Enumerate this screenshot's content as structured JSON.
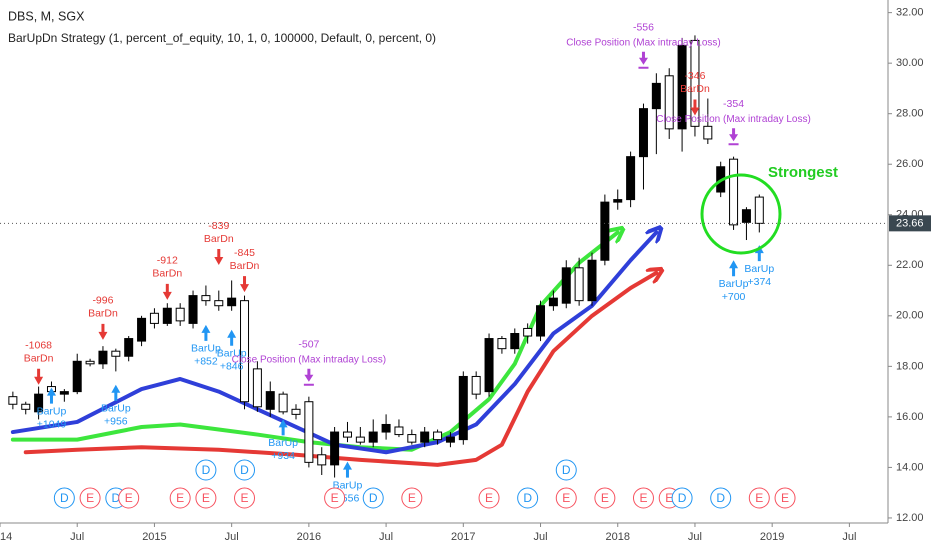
{
  "chart_data": {
    "type": "candlestick",
    "title": "DBS, M, SGX",
    "subtitle": "BarUpDn Strategy (1, percent_of_equity, 10, 1, 0, 100000, Default, 0, percent, 0)",
    "annotation": "Strongest",
    "up_color": "#000000",
    "down_color": "#ffffff",
    "xlim": [
      "2014-01",
      "2019-10"
    ],
    "xticks": [
      {
        "value": "2014-01",
        "label": "14"
      },
      {
        "value": "2014-07",
        "label": "Jul"
      },
      {
        "value": "2015-01",
        "label": "2015"
      },
      {
        "value": "2015-07",
        "label": "Jul"
      },
      {
        "value": "2016-01",
        "label": "2016"
      },
      {
        "value": "2016-07",
        "label": "Jul"
      },
      {
        "value": "2017-01",
        "label": "2017"
      },
      {
        "value": "2017-07",
        "label": "Jul"
      },
      {
        "value": "2018-01",
        "label": "2018"
      },
      {
        "value": "2018-07",
        "label": "Jul"
      },
      {
        "value": "2019-01",
        "label": "2019"
      },
      {
        "value": "2019-07",
        "label": "Jul"
      }
    ],
    "ylim": [
      11.8,
      32.5
    ],
    "yticks": [
      {
        "value": 12,
        "label": "12.00"
      },
      {
        "value": 14,
        "label": "14.00"
      },
      {
        "value": 16,
        "label": "16.00"
      },
      {
        "value": 18,
        "label": "18.00"
      },
      {
        "value": 20,
        "label": "20.00"
      },
      {
        "value": 22,
        "label": "22.00"
      },
      {
        "value": 24,
        "label": "24.00"
      },
      {
        "value": 26,
        "label": "26.00"
      },
      {
        "value": 28,
        "label": "28.00"
      },
      {
        "value": 30,
        "label": "30.00"
      },
      {
        "value": 32,
        "label": "32.00"
      }
    ],
    "last_price": {
      "value": 23.66,
      "label": "23.66"
    },
    "candles": [
      {
        "x": "2014-02",
        "o": 16.8,
        "h": 17.0,
        "l": 16.3,
        "c": 16.5
      },
      {
        "x": "2014-03",
        "o": 16.5,
        "h": 16.6,
        "l": 16.1,
        "c": 16.3
      },
      {
        "x": "2014-04",
        "o": 16.2,
        "h": 17.2,
        "l": 15.9,
        "c": 16.9
      },
      {
        "x": "2014-05",
        "o": 17.2,
        "h": 17.4,
        "l": 16.9,
        "c": 17.0
      },
      {
        "x": "2014-06",
        "o": 16.9,
        "h": 17.1,
        "l": 16.6,
        "c": 17.0
      },
      {
        "x": "2014-07",
        "o": 17.0,
        "h": 18.5,
        "l": 16.9,
        "c": 18.2
      },
      {
        "x": "2014-08",
        "o": 18.2,
        "h": 18.3,
        "l": 18.0,
        "c": 18.1
      },
      {
        "x": "2014-09",
        "o": 18.1,
        "h": 18.8,
        "l": 17.9,
        "c": 18.6
      },
      {
        "x": "2014-10",
        "o": 18.6,
        "h": 18.7,
        "l": 17.8,
        "c": 18.4
      },
      {
        "x": "2014-11",
        "o": 18.4,
        "h": 19.2,
        "l": 18.2,
        "c": 19.1
      },
      {
        "x": "2014-12",
        "o": 19.0,
        "h": 20.0,
        "l": 18.8,
        "c": 19.9
      },
      {
        "x": "2015-01",
        "o": 20.1,
        "h": 20.3,
        "l": 19.5,
        "c": 19.7
      },
      {
        "x": "2015-02",
        "o": 19.7,
        "h": 20.5,
        "l": 19.6,
        "c": 20.3
      },
      {
        "x": "2015-03",
        "o": 20.3,
        "h": 20.5,
        "l": 19.6,
        "c": 19.8
      },
      {
        "x": "2015-04",
        "o": 19.7,
        "h": 21.0,
        "l": 19.5,
        "c": 20.8
      },
      {
        "x": "2015-05",
        "o": 20.8,
        "h": 21.2,
        "l": 20.4,
        "c": 20.6
      },
      {
        "x": "2015-06",
        "o": 20.6,
        "h": 21.0,
        "l": 20.2,
        "c": 20.4
      },
      {
        "x": "2015-07",
        "o": 20.4,
        "h": 21.4,
        "l": 20.2,
        "c": 20.7
      },
      {
        "x": "2015-08",
        "o": 20.6,
        "h": 20.8,
        "l": 16.3,
        "c": 16.6
      },
      {
        "x": "2015-09",
        "o": 17.9,
        "h": 18.2,
        "l": 16.2,
        "c": 16.4
      },
      {
        "x": "2015-10",
        "o": 16.3,
        "h": 17.4,
        "l": 16.0,
        "c": 17.0
      },
      {
        "x": "2015-11",
        "o": 16.9,
        "h": 17.0,
        "l": 16.1,
        "c": 16.2
      },
      {
        "x": "2015-12",
        "o": 16.3,
        "h": 16.5,
        "l": 15.9,
        "c": 16.1
      },
      {
        "x": "2016-01",
        "o": 16.6,
        "h": 16.8,
        "l": 14.0,
        "c": 14.2
      },
      {
        "x": "2016-02",
        "o": 14.5,
        "h": 14.8,
        "l": 13.7,
        "c": 14.1
      },
      {
        "x": "2016-03",
        "o": 14.1,
        "h": 15.6,
        "l": 13.6,
        "c": 15.4
      },
      {
        "x": "2016-04",
        "o": 15.4,
        "h": 15.8,
        "l": 15.0,
        "c": 15.2
      },
      {
        "x": "2016-05",
        "o": 15.2,
        "h": 15.6,
        "l": 14.9,
        "c": 15.0
      },
      {
        "x": "2016-06",
        "o": 15.0,
        "h": 15.9,
        "l": 14.8,
        "c": 15.4
      },
      {
        "x": "2016-07",
        "o": 15.4,
        "h": 16.1,
        "l": 15.1,
        "c": 15.7
      },
      {
        "x": "2016-08",
        "o": 15.6,
        "h": 15.9,
        "l": 15.2,
        "c": 15.3
      },
      {
        "x": "2016-09",
        "o": 15.3,
        "h": 15.5,
        "l": 14.9,
        "c": 15.0
      },
      {
        "x": "2016-10",
        "o": 15.0,
        "h": 15.6,
        "l": 14.8,
        "c": 15.4
      },
      {
        "x": "2016-11",
        "o": 15.4,
        "h": 15.5,
        "l": 14.9,
        "c": 15.1
      },
      {
        "x": "2016-12",
        "o": 15.0,
        "h": 15.4,
        "l": 14.8,
        "c": 15.2
      },
      {
        "x": "2017-01",
        "o": 15.1,
        "h": 17.8,
        "l": 14.9,
        "c": 17.6
      },
      {
        "x": "2017-02",
        "o": 17.6,
        "h": 17.8,
        "l": 16.7,
        "c": 16.9
      },
      {
        "x": "2017-03",
        "o": 17.0,
        "h": 19.3,
        "l": 16.8,
        "c": 19.1
      },
      {
        "x": "2017-04",
        "o": 19.1,
        "h": 19.2,
        "l": 18.5,
        "c": 18.7
      },
      {
        "x": "2017-05",
        "o": 18.7,
        "h": 19.5,
        "l": 18.5,
        "c": 19.3
      },
      {
        "x": "2017-06",
        "o": 19.5,
        "h": 19.7,
        "l": 18.9,
        "c": 19.2
      },
      {
        "x": "2017-07",
        "o": 19.2,
        "h": 20.6,
        "l": 19.0,
        "c": 20.4
      },
      {
        "x": "2017-08",
        "o": 20.4,
        "h": 21.0,
        "l": 20.2,
        "c": 20.7
      },
      {
        "x": "2017-09",
        "o": 20.5,
        "h": 22.2,
        "l": 20.3,
        "c": 21.9
      },
      {
        "x": "2017-10",
        "o": 21.9,
        "h": 22.3,
        "l": 20.4,
        "c": 20.6
      },
      {
        "x": "2017-11",
        "o": 20.6,
        "h": 22.5,
        "l": 20.4,
        "c": 22.2
      },
      {
        "x": "2017-12",
        "o": 22.2,
        "h": 24.8,
        "l": 22.0,
        "c": 24.5
      },
      {
        "x": "2018-01",
        "o": 24.5,
        "h": 25.0,
        "l": 24.2,
        "c": 24.6
      },
      {
        "x": "2018-02",
        "o": 24.6,
        "h": 26.5,
        "l": 24.3,
        "c": 26.3
      },
      {
        "x": "2018-03",
        "o": 26.3,
        "h": 28.4,
        "l": 25.0,
        "c": 28.2
      },
      {
        "x": "2018-04",
        "o": 28.2,
        "h": 29.6,
        "l": 26.4,
        "c": 29.2
      },
      {
        "x": "2018-05",
        "o": 29.5,
        "h": 29.8,
        "l": 27.0,
        "c": 27.4
      },
      {
        "x": "2018-06",
        "o": 27.4,
        "h": 31.0,
        "l": 26.5,
        "c": 30.7
      },
      {
        "x": "2018-07",
        "o": 30.9,
        "h": 31.1,
        "l": 27.1,
        "c": 27.5
      },
      {
        "x": "2018-08",
        "o": 27.5,
        "h": 28.6,
        "l": 26.8,
        "c": 27.0
      },
      {
        "x": "2018-09",
        "o": 24.9,
        "h": 26.1,
        "l": 24.7,
        "c": 25.9
      },
      {
        "x": "2018-10",
        "o": 26.2,
        "h": 26.3,
        "l": 23.4,
        "c": 23.6
      },
      {
        "x": "2018-11",
        "o": 23.7,
        "h": 24.3,
        "l": 23.0,
        "c": 24.2
      },
      {
        "x": "2018-12",
        "o": 24.7,
        "h": 24.8,
        "l": 23.3,
        "c": 23.66
      }
    ],
    "drawings": [
      {
        "color": "#3de63d",
        "points": [
          [
            "2014-02",
            15.1
          ],
          [
            "2014-07",
            15.1
          ],
          [
            "2014-12",
            15.6
          ],
          [
            "2015-03",
            15.7
          ],
          [
            "2015-06",
            15.5
          ],
          [
            "2015-09",
            15.3
          ],
          [
            "2016-01",
            15.0
          ],
          [
            "2016-05",
            14.8
          ],
          [
            "2016-09",
            14.7
          ],
          [
            "2016-12",
            15.4
          ],
          [
            "2017-03",
            16.7
          ],
          [
            "2017-05",
            18.1
          ],
          [
            "2017-07",
            20.4
          ],
          [
            "2017-10",
            22.1
          ],
          [
            "2018-01",
            23.3
          ]
        ]
      },
      {
        "color": "#2f3fd9",
        "points": [
          [
            "2014-02",
            15.4
          ],
          [
            "2014-07",
            15.8
          ],
          [
            "2014-12",
            17.1
          ],
          [
            "2015-03",
            17.5
          ],
          [
            "2015-06",
            17.0
          ],
          [
            "2015-09",
            16.3
          ],
          [
            "2015-12",
            15.6
          ],
          [
            "2016-03",
            14.9
          ],
          [
            "2016-07",
            14.6
          ],
          [
            "2016-11",
            15.0
          ],
          [
            "2017-02",
            15.7
          ],
          [
            "2017-05",
            17.3
          ],
          [
            "2017-08",
            19.3
          ],
          [
            "2017-11",
            20.4
          ],
          [
            "2018-02",
            22.2
          ],
          [
            "2018-04",
            23.3
          ]
        ]
      },
      {
        "color": "#e53935",
        "points": [
          [
            "2014-03",
            14.6
          ],
          [
            "2014-07",
            14.7
          ],
          [
            "2014-12",
            14.8
          ],
          [
            "2015-06",
            14.7
          ],
          [
            "2015-12",
            14.5
          ],
          [
            "2016-05",
            14.3
          ],
          [
            "2016-11",
            14.1
          ],
          [
            "2017-02",
            14.3
          ],
          [
            "2017-04",
            14.9
          ],
          [
            "2017-06",
            17.0
          ],
          [
            "2017-08",
            18.6
          ],
          [
            "2017-11",
            20.0
          ],
          [
            "2018-02",
            21.1
          ],
          [
            "2018-04",
            21.7
          ]
        ]
      }
    ],
    "signal_colors": {
      "dn": "#e53935",
      "up": "#2196f3",
      "close": "#b042d4"
    },
    "signals": [
      {
        "side": "dn",
        "x": "2014-04",
        "y": 17.27,
        "label": "BarDn",
        "pnl": "-1068"
      },
      {
        "side": "dn",
        "x": "2014-09",
        "y": 19.05,
        "label": "BarDn",
        "pnl": "-996"
      },
      {
        "side": "dn",
        "x": "2015-02",
        "y": 20.63,
        "label": "BarDn",
        "pnl": "-912"
      },
      {
        "side": "dn",
        "x": "2015-06",
        "y": 22.01,
        "label": "BarDn",
        "pnl": "-839"
      },
      {
        "side": "dn",
        "x": "2015-08",
        "y": 20.94,
        "label": "BarDn",
        "pnl": "-845"
      },
      {
        "side": "dn",
        "x": "2018-07",
        "y": 27.93,
        "label": "BarDn",
        "pnl": "-346"
      },
      {
        "side": "up",
        "x": "2014-05",
        "y": 17.16,
        "label": "BarUp",
        "pnl": "+1049"
      },
      {
        "side": "up",
        "x": "2014-10",
        "y": 17.27,
        "label": "BarUp",
        "pnl": "+956"
      },
      {
        "side": "up",
        "x": "2015-05",
        "y": 19.64,
        "label": "BarUp",
        "pnl": "+852"
      },
      {
        "side": "up",
        "x": "2015-07",
        "y": 19.45,
        "label": "BarUp",
        "pnl": "+846"
      },
      {
        "side": "up",
        "x": "2015-11",
        "y": 15.9,
        "label": "BarUp",
        "pnl": "+934"
      },
      {
        "side": "up",
        "x": "2016-04",
        "y": 14.23,
        "label": "BarUp",
        "pnl": "+556"
      },
      {
        "side": "up",
        "x": "2018-10",
        "y": 22.2,
        "label": "BarUp",
        "pnl": "+700"
      },
      {
        "side": "up",
        "x": "2018-12",
        "y": 22.8,
        "label": "BarUp",
        "pnl": "+374"
      },
      {
        "side": "close",
        "x": "2016-01",
        "y": 17.35,
        "label": "Close Position (Max intraday Loss)",
        "pnl": "-507"
      },
      {
        "side": "close",
        "x": "2018-03",
        "y": 29.9,
        "label": "Close Position (Max intraday Loss)",
        "pnl": "-556"
      },
      {
        "side": "close",
        "x": "2018-10",
        "y": 26.87,
        "label": "Close Position (Max intraday Loss)",
        "pnl": "-354"
      }
    ],
    "event_colors": {
      "D": "#2196f3",
      "E": "#f7525f"
    },
    "events_upper": [
      {
        "x": "2015-05",
        "label": "D"
      },
      {
        "x": "2015-08",
        "label": "D"
      },
      {
        "x": "2017-09",
        "label": "D"
      }
    ],
    "events_lower": [
      {
        "x": "2014-06",
        "label": "D"
      },
      {
        "x": "2014-08",
        "label": "E"
      },
      {
        "x": "2014-10",
        "label": "D"
      },
      {
        "x": "2014-11",
        "label": "E"
      },
      {
        "x": "2015-03",
        "label": "E"
      },
      {
        "x": "2015-05",
        "label": "E"
      },
      {
        "x": "2015-08",
        "label": "E"
      },
      {
        "x": "2016-03",
        "label": "E"
      },
      {
        "x": "2016-06",
        "label": "D"
      },
      {
        "x": "2016-09",
        "label": "E"
      },
      {
        "x": "2017-03",
        "label": "E"
      },
      {
        "x": "2017-06",
        "label": "D"
      },
      {
        "x": "2017-09",
        "label": "E"
      },
      {
        "x": "2017-12",
        "label": "E"
      },
      {
        "x": "2018-03",
        "label": "E"
      },
      {
        "x": "2018-05",
        "label": "E"
      },
      {
        "x": "2018-06",
        "label": "D"
      },
      {
        "x": "2018-09",
        "label": "D"
      },
      {
        "x": "2018-12",
        "label": "E"
      },
      {
        "x": "2019-02",
        "label": "E"
      }
    ]
  }
}
